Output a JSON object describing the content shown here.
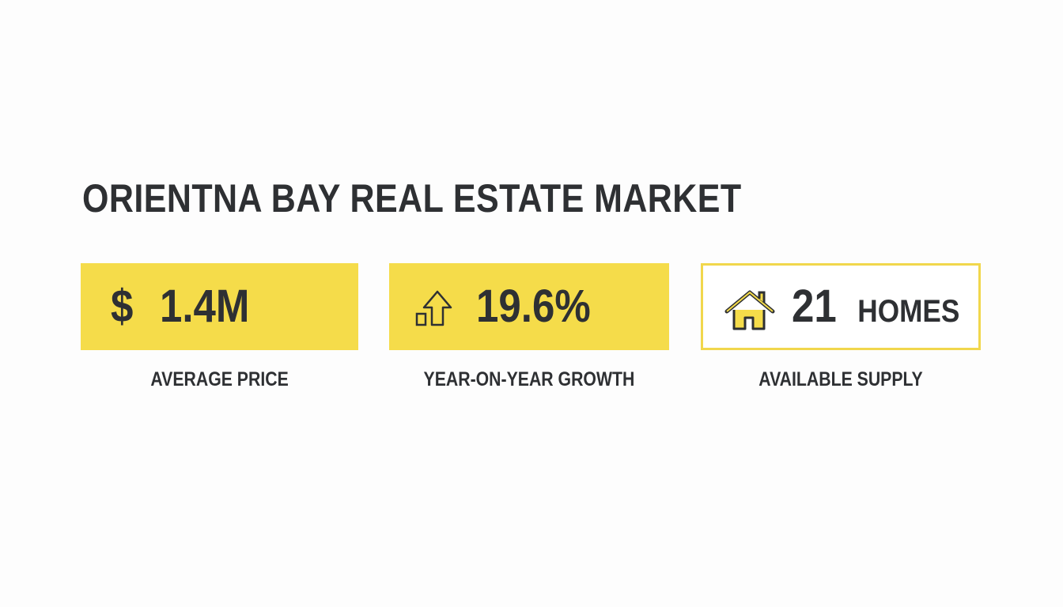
{
  "title": "ORIENTNA BAY REAL ESTATE MARKET",
  "colors": {
    "accent": "#f5dc4a",
    "text": "#2e3033"
  },
  "cards": [
    {
      "icon": "dollar-icon",
      "symbol": "$",
      "value": "1.4M",
      "label": "AVERAGE PRICE",
      "style": "filled"
    },
    {
      "icon": "growth-arrow-icon",
      "value": "19.6%",
      "label": "YEAR-ON-YEAR GROWTH",
      "style": "filled"
    },
    {
      "icon": "house-icon",
      "value": "21",
      "unit": "HOMES",
      "label": "AVAILABLE SUPPLY",
      "style": "outlined"
    }
  ]
}
